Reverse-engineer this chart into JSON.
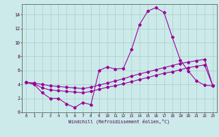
{
  "xlabel": "Windchill (Refroidissement éolien,°C)",
  "bg_color": "#cceaea",
  "grid_color": "#aacccc",
  "line_color": "#990099",
  "xlim": [
    -0.5,
    23.5
  ],
  "ylim": [
    0,
    15.5
  ],
  "xticks": [
    0,
    1,
    2,
    3,
    4,
    5,
    6,
    7,
    8,
    9,
    10,
    11,
    12,
    13,
    14,
    15,
    16,
    17,
    18,
    19,
    20,
    21,
    22,
    23
  ],
  "yticks": [
    0,
    2,
    4,
    6,
    8,
    10,
    12,
    14
  ],
  "line1_y": [
    4.3,
    4.0,
    2.8,
    2.0,
    2.0,
    1.2,
    0.7,
    1.4,
    1.1,
    6.0,
    6.5,
    6.2,
    6.3,
    9.0,
    12.6,
    14.5,
    15.0,
    14.3,
    10.8,
    7.5,
    5.9,
    4.5,
    3.9,
    3.8
  ],
  "line2_y": [
    4.3,
    4.1,
    3.5,
    3.2,
    3.1,
    3.0,
    2.9,
    2.8,
    3.0,
    3.3,
    3.6,
    3.8,
    4.1,
    4.4,
    4.7,
    5.0,
    5.3,
    5.6,
    5.8,
    6.1,
    6.4,
    6.6,
    6.8,
    3.8
  ],
  "line3_y": [
    4.3,
    4.2,
    4.0,
    3.8,
    3.7,
    3.6,
    3.5,
    3.4,
    3.6,
    3.9,
    4.2,
    4.5,
    4.8,
    5.2,
    5.5,
    5.8,
    6.1,
    6.4,
    6.7,
    7.0,
    7.2,
    7.4,
    7.6,
    3.8
  ]
}
